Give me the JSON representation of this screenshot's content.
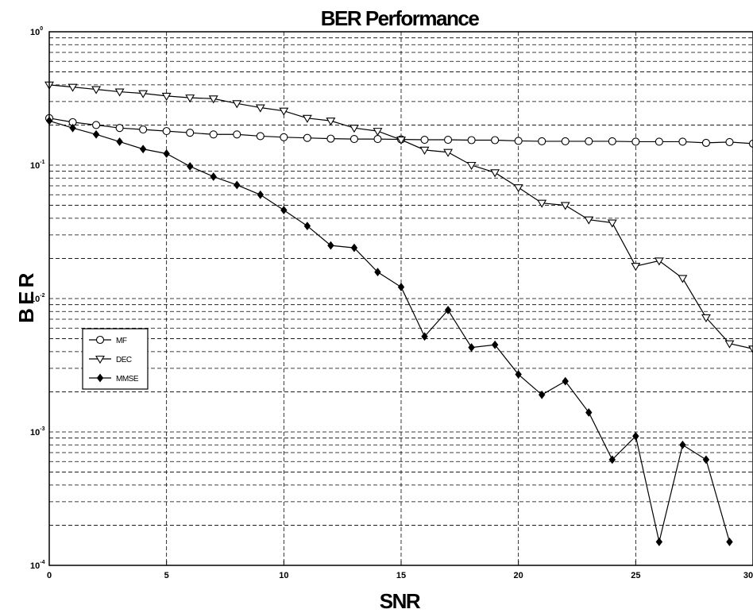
{
  "chart_data": {
    "type": "line",
    "title": "BER Performance",
    "xlabel": "SNR",
    "ylabel": "B E R",
    "xlim": [
      0,
      30
    ],
    "ylim": [
      0.0001,
      1
    ],
    "yscale": "log",
    "grid": true,
    "legend_position": "left",
    "x_ticks": [
      {
        "value": 0,
        "label": "0"
      },
      {
        "value": 5,
        "label": "5"
      },
      {
        "value": 10,
        "label": "10"
      },
      {
        "value": 15,
        "label": "15"
      },
      {
        "value": 20,
        "label": "20"
      },
      {
        "value": 25,
        "label": "25"
      },
      {
        "value": 30,
        "label": "30"
      }
    ],
    "y_ticks": [
      {
        "value": 1,
        "base": "10",
        "exp": "0"
      },
      {
        "value": 0.1,
        "base": "10",
        "exp": "-1"
      },
      {
        "value": 0.01,
        "base": "10",
        "exp": "-2"
      },
      {
        "value": 0.001,
        "base": "10",
        "exp": "-3"
      },
      {
        "value": 0.0001,
        "base": "10",
        "exp": "-4"
      }
    ],
    "x": [
      0,
      1,
      2,
      3,
      4,
      5,
      6,
      7,
      8,
      9,
      10,
      11,
      12,
      13,
      14,
      15,
      16,
      17,
      18,
      19,
      20,
      21,
      22,
      23,
      24,
      25,
      26,
      27,
      28,
      29,
      30
    ],
    "series": [
      {
        "name": "MF",
        "marker": "circle",
        "values": [
          0.225,
          0.21,
          0.2,
          0.19,
          0.185,
          0.18,
          0.175,
          0.17,
          0.17,
          0.165,
          0.162,
          0.16,
          0.158,
          0.157,
          0.157,
          0.156,
          0.155,
          0.155,
          0.154,
          0.154,
          0.152,
          0.151,
          0.151,
          0.151,
          0.151,
          0.15,
          0.15,
          0.15,
          0.147,
          0.149,
          0.145
        ]
      },
      {
        "name": "DEC",
        "marker": "triangle-down",
        "values": [
          0.4,
          0.385,
          0.37,
          0.355,
          0.345,
          0.33,
          0.32,
          0.315,
          0.29,
          0.27,
          0.255,
          0.225,
          0.215,
          0.19,
          0.18,
          0.155,
          0.13,
          0.125,
          0.1,
          0.088,
          0.068,
          0.052,
          0.05,
          0.039,
          0.037,
          0.0175,
          0.0192,
          0.0142,
          0.0072,
          0.0046,
          0.0042
        ]
      },
      {
        "name": "MMSE",
        "marker": "diamond",
        "values": [
          0.215,
          0.19,
          0.17,
          0.15,
          0.132,
          0.122,
          0.098,
          0.082,
          0.071,
          0.06,
          0.046,
          0.035,
          0.025,
          0.024,
          0.0158,
          0.0122,
          0.0052,
          0.0082,
          0.0043,
          0.0045,
          0.0027,
          0.0019,
          0.0024,
          0.0014,
          0.00062,
          0.00093,
          0.00015,
          0.0008,
          0.00062,
          0.00015,
          null
        ]
      }
    ]
  }
}
